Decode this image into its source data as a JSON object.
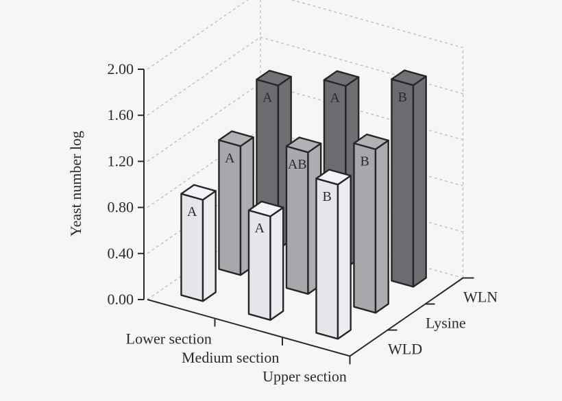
{
  "chart_data": {
    "type": "bar",
    "subtype": "3d-grouped-bar",
    "title": "",
    "ylabel": "Yeast number log",
    "ylim": [
      0,
      2.0
    ],
    "yticks": [
      "0.00",
      "0.40",
      "0.80",
      "1.20",
      "1.60",
      "2.00"
    ],
    "categories": [
      "Lower section",
      "Medium section",
      "Upper section"
    ],
    "depth_categories": [
      "WLD",
      "Lysine",
      "WLN"
    ],
    "grid": true,
    "series": [
      {
        "name": "WLD",
        "values": [
          0.88,
          0.9,
          1.34
        ],
        "labels": [
          "A",
          "A",
          "B"
        ],
        "color": "#e4e6e9"
      },
      {
        "name": "Lysine",
        "values": [
          1.12,
          1.23,
          1.42
        ],
        "labels": [
          "A",
          "AB",
          "B"
        ],
        "color": "#a6a8ab"
      },
      {
        "name": "WLN",
        "values": [
          1.42,
          1.58,
          1.75
        ],
        "labels": [
          "A",
          "A",
          "B"
        ],
        "color": "#6b6c70"
      }
    ]
  }
}
